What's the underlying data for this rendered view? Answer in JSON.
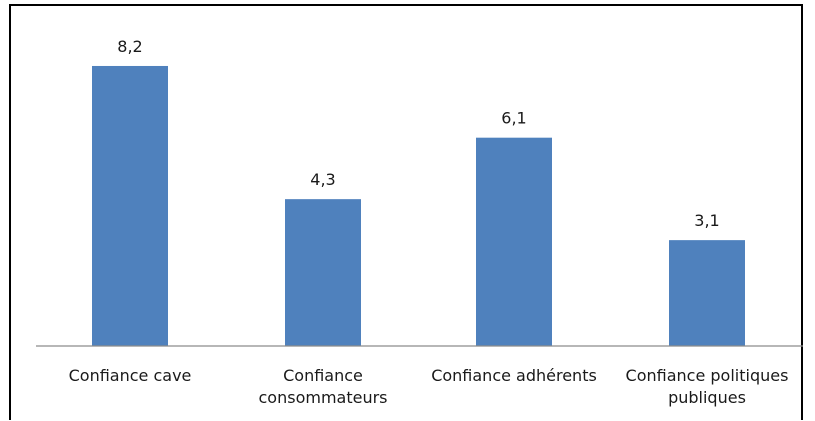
{
  "chart_data": {
    "type": "bar",
    "title": "",
    "xlabel": "",
    "ylabel": "",
    "categories": [
      [
        "Confiance cave"
      ],
      [
        "Confiance",
        "consommateurs"
      ],
      [
        "Confiance adhérents"
      ],
      [
        "Confiance politiques",
        "publiques"
      ]
    ],
    "values": [
      8.2,
      4.3,
      6.1,
      3.1
    ],
    "value_labels": [
      "8,2",
      "4,3",
      "6,1",
      "3,1"
    ],
    "ylim": [
      0,
      9
    ],
    "grid": false,
    "legend": "none",
    "bar_color": "#4F81BD",
    "axis_color": "#8C8C8C"
  }
}
